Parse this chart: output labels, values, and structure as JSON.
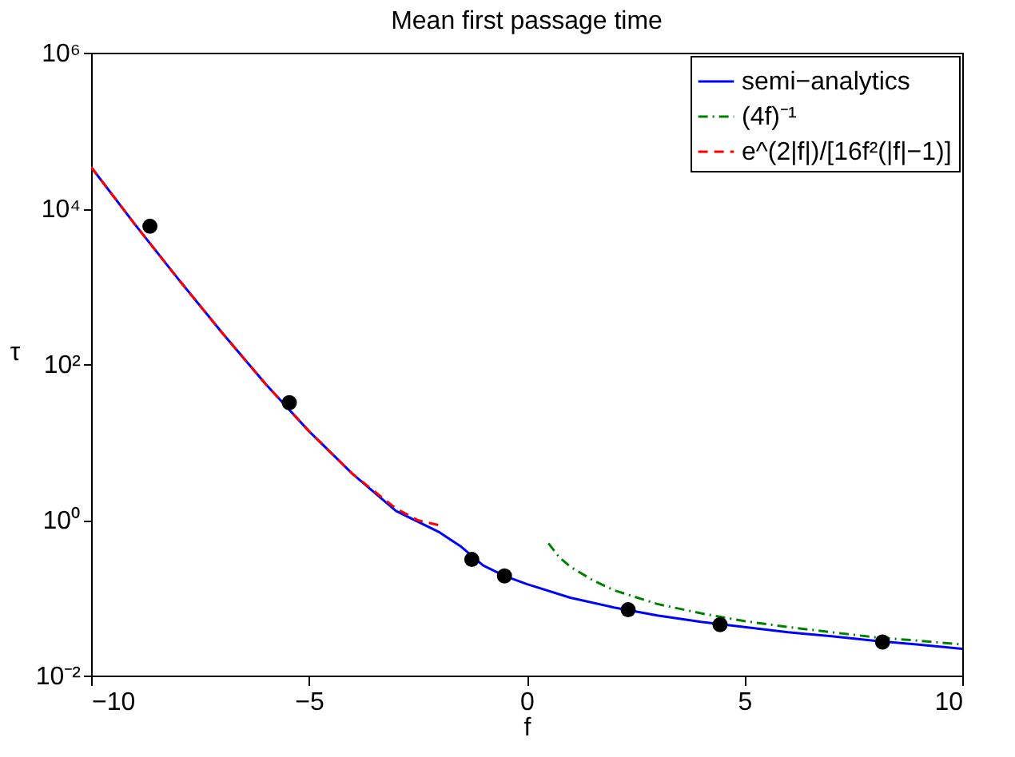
{
  "chart_data": {
    "type": "line",
    "title": "Mean first passage time",
    "xlabel": "f",
    "ylabel": "τ",
    "xlim": [
      -10,
      10
    ],
    "xticks": [
      -10,
      -5,
      0,
      5,
      10
    ],
    "ylim": [
      0.01,
      1000000
    ],
    "yticks": [
      {
        "value": 0.01,
        "label": "10⁻²"
      },
      {
        "value": 1,
        "label": "10⁰"
      },
      {
        "value": 100,
        "label": "10²"
      },
      {
        "value": 10000,
        "label": "10⁴"
      },
      {
        "value": 1000000,
        "label": "10⁶"
      }
    ],
    "log": "y",
    "grid": false,
    "legend": "top right",
    "series": [
      {
        "name": "semi−analytics",
        "color": "#0000ff",
        "line_style": "solid",
        "x": [
          -10,
          -9,
          -8,
          -7,
          -6,
          -5,
          -4,
          -3,
          -2,
          -1.5,
          -1,
          -0.5,
          0,
          1,
          2,
          3,
          4,
          5,
          6,
          7,
          8,
          9,
          10
        ],
        "values": [
          34000,
          6300,
          1240,
          256,
          56,
          13.8,
          3.9,
          1.3,
          0.69,
          0.45,
          0.26,
          0.19,
          0.15,
          0.1,
          0.075,
          0.059,
          0.049,
          0.042,
          0.036,
          0.032,
          0.028,
          0.025,
          0.022
        ]
      },
      {
        "name": "(4f)⁻¹",
        "color": "#008000",
        "line_style": "dashdot",
        "x": [
          0.5,
          0.75,
          1,
          1.5,
          2,
          3,
          4,
          5,
          6,
          7,
          8,
          9,
          10
        ],
        "values": [
          0.5,
          0.33,
          0.25,
          0.17,
          0.125,
          0.083,
          0.063,
          0.05,
          0.042,
          0.036,
          0.031,
          0.028,
          0.025
        ]
      },
      {
        "name": "e^(2|f|)/[16f²(|f|−1)]",
        "color": "#ff0000",
        "line_style": "dashed",
        "x": [
          -10,
          -9,
          -8,
          -7,
          -6,
          -5,
          -4,
          -3,
          -2.5,
          -2
        ],
        "values": [
          34000,
          6300,
          1240,
          256,
          56,
          13.8,
          3.9,
          1.4,
          0.99,
          0.85
        ]
      },
      {
        "type": "scatter",
        "color": "#000000",
        "marker": "circle",
        "x": [
          -8.65,
          -5.45,
          -1.26,
          -0.51,
          2.33,
          4.44,
          8.17
        ],
        "values": [
          5900,
          32,
          0.31,
          0.19,
          0.07,
          0.045,
          0.027
        ]
      }
    ]
  }
}
